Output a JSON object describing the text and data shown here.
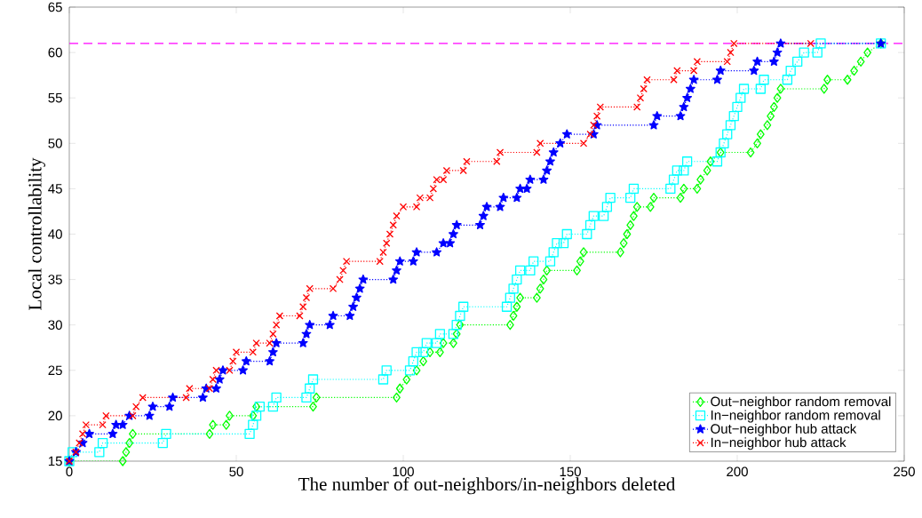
{
  "chart_data": {
    "type": "line",
    "xlabel": "The number of out-neighbors/in-neighbors deleted",
    "ylabel": "Local controllability",
    "xlim": [
      0,
      250
    ],
    "ylim": [
      15,
      65
    ],
    "xticks": [
      0,
      50,
      100,
      150,
      200,
      250
    ],
    "yticks": [
      15,
      20,
      25,
      30,
      35,
      40,
      45,
      50,
      55,
      60,
      65
    ],
    "legend": "bottom right",
    "line_style": "dotted",
    "ref_lines": [
      {
        "axis": "y",
        "value": 61,
        "color": "#ff00ff",
        "line_style": "dashed"
      }
    ],
    "series": [
      {
        "name": "Out−neighbor random removal",
        "color": "#00ff00",
        "marker": "diamond",
        "x": [
          0,
          16,
          17,
          18,
          19,
          42,
          43,
          47,
          48,
          55,
          56,
          73,
          74,
          98,
          99,
          101,
          104,
          106,
          108,
          111,
          112,
          115,
          116,
          117,
          132,
          133,
          134,
          135,
          140,
          141,
          142,
          143,
          152,
          153,
          154,
          165,
          166,
          167,
          168,
          169,
          170,
          174,
          175,
          183,
          184,
          188,
          189,
          191,
          192,
          195,
          204,
          206,
          207,
          209,
          210,
          211,
          212,
          213,
          226,
          227,
          233,
          235,
          237,
          239,
          243
        ],
        "values": [
          15,
          15,
          16,
          17,
          18,
          18,
          19,
          19,
          20,
          20,
          21,
          21,
          22,
          22,
          23,
          24,
          25,
          26,
          27,
          27,
          28,
          28,
          29,
          30,
          30,
          31,
          32,
          33,
          33,
          34,
          35,
          36,
          36,
          37,
          38,
          38,
          39,
          40,
          41,
          42,
          43,
          43,
          44,
          44,
          45,
          45,
          46,
          47,
          48,
          49,
          49,
          50,
          51,
          52,
          53,
          54,
          55,
          56,
          56,
          57,
          57,
          58,
          59,
          60,
          61
        ]
      },
      {
        "name": "In−neighbor random removal",
        "color": "#00ffff",
        "marker": "square",
        "x": [
          0,
          1,
          9,
          10,
          28,
          29,
          54,
          55,
          56,
          57,
          61,
          62,
          71,
          72,
          73,
          94,
          95,
          102,
          103,
          104,
          106,
          107,
          110,
          111,
          115,
          116,
          117,
          118,
          131,
          132,
          133,
          134,
          135,
          138,
          139,
          144,
          145,
          146,
          148,
          149,
          155,
          156,
          157,
          160,
          161,
          162,
          168,
          169,
          180,
          181,
          182,
          184,
          185,
          194,
          195,
          196,
          197,
          198,
          199,
          200,
          201,
          202,
          207,
          208,
          215,
          216,
          218,
          220,
          224,
          225,
          243
        ],
        "values": [
          15,
          16,
          16,
          17,
          17,
          18,
          18,
          19,
          20,
          21,
          21,
          22,
          22,
          23,
          24,
          24,
          25,
          25,
          26,
          27,
          27,
          28,
          28,
          29,
          29,
          30,
          31,
          32,
          32,
          33,
          34,
          35,
          36,
          36,
          37,
          37,
          38,
          39,
          39,
          40,
          40,
          41,
          42,
          42,
          43,
          44,
          44,
          45,
          45,
          46,
          47,
          47,
          48,
          48,
          49,
          50,
          51,
          52,
          53,
          54,
          55,
          56,
          56,
          57,
          57,
          58,
          59,
          60,
          60,
          61,
          61
        ]
      },
      {
        "name": "Out−neighbor hub attack",
        "color": "#0000ff",
        "marker": "star",
        "x": [
          0,
          2,
          4,
          6,
          13,
          14,
          16,
          18,
          24,
          25,
          30,
          31,
          40,
          41,
          44,
          45,
          46,
          52,
          53,
          60,
          61,
          62,
          70,
          71,
          72,
          78,
          79,
          84,
          85,
          86,
          87,
          88,
          97,
          98,
          99,
          103,
          104,
          110,
          112,
          114,
          115,
          116,
          123,
          124,
          125,
          129,
          130,
          134,
          135,
          137,
          138,
          142,
          143,
          144,
          145,
          147,
          149,
          157,
          158,
          175,
          176,
          183,
          184,
          185,
          186,
          187,
          194,
          195,
          205,
          206,
          211,
          212,
          213,
          243
        ],
        "values": [
          15,
          16,
          17,
          18,
          18,
          19,
          19,
          20,
          20,
          21,
          21,
          22,
          22,
          23,
          23,
          24,
          25,
          25,
          26,
          26,
          27,
          28,
          28,
          29,
          30,
          30,
          31,
          31,
          32,
          33,
          34,
          35,
          35,
          36,
          37,
          37,
          38,
          38,
          39,
          39,
          40,
          41,
          41,
          42,
          43,
          43,
          44,
          44,
          45,
          45,
          46,
          46,
          47,
          48,
          49,
          50,
          51,
          51,
          52,
          52,
          53,
          53,
          54,
          55,
          56,
          57,
          57,
          58,
          58,
          59,
          59,
          60,
          61,
          61
        ]
      },
      {
        "name": "In−neighbor hub attack",
        "color": "#ff0000",
        "marker": "cross",
        "x": [
          0,
          2,
          3,
          4,
          5,
          10,
          11,
          19,
          20,
          22,
          35,
          36,
          42,
          43,
          44,
          48,
          49,
          50,
          55,
          56,
          60,
          61,
          62,
          63,
          69,
          70,
          71,
          72,
          79,
          81,
          82,
          83,
          93,
          94,
          95,
          96,
          97,
          98,
          100,
          104,
          105,
          108,
          109,
          110,
          112,
          113,
          118,
          119,
          128,
          129,
          140,
          141,
          154,
          156,
          157,
          158,
          159,
          170,
          171,
          172,
          173,
          181,
          182,
          187,
          188,
          197,
          198,
          199,
          222
        ],
        "values": [
          15,
          16,
          17,
          18,
          19,
          19,
          20,
          20,
          21,
          22,
          22,
          23,
          23,
          24,
          25,
          25,
          26,
          27,
          27,
          28,
          28,
          29,
          30,
          31,
          31,
          32,
          33,
          34,
          34,
          35,
          36,
          37,
          37,
          38,
          39,
          40,
          41,
          42,
          43,
          43,
          44,
          44,
          45,
          46,
          46,
          47,
          47,
          48,
          48,
          49,
          49,
          50,
          50,
          51,
          52,
          53,
          54,
          54,
          55,
          56,
          57,
          57,
          58,
          58,
          59,
          59,
          60,
          61,
          61
        ]
      }
    ]
  }
}
